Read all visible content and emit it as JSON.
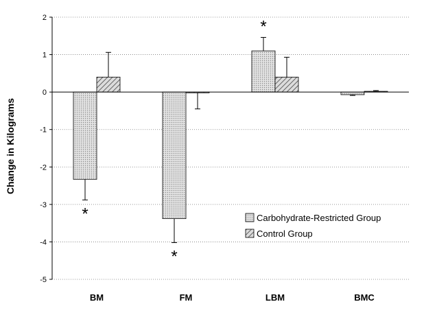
{
  "chart_data": {
    "type": "bar",
    "categories": [
      "BM",
      "FM",
      "LBM",
      "BMC"
    ],
    "series": [
      {
        "name": "Carbohydrate-Restricted Group",
        "values": [
          -2.33,
          -3.38,
          1.1,
          -0.07
        ],
        "error": [
          0.55,
          0.64,
          0.36,
          0.02
        ],
        "fill": "dots"
      },
      {
        "name": "Control Group",
        "values": [
          0.4,
          -0.02,
          0.4,
          0.02
        ],
        "error": [
          0.66,
          0.43,
          0.53,
          0.02
        ],
        "fill": "hatch"
      }
    ],
    "significance": [
      {
        "category": "BM",
        "series": 0,
        "label": "*"
      },
      {
        "category": "FM",
        "series": 0,
        "label": "*"
      },
      {
        "category": "LBM",
        "series": 0,
        "label": "*"
      }
    ],
    "ylabel": "Change in Kilograms",
    "xlabel": "",
    "title": "",
    "ylim": [
      -5,
      2
    ],
    "yticks": [
      "2",
      "1",
      "0",
      "-1",
      "-2",
      "-3",
      "-4",
      "-5"
    ],
    "grid": "horizontal dotted",
    "legend_position": "lower-right"
  }
}
